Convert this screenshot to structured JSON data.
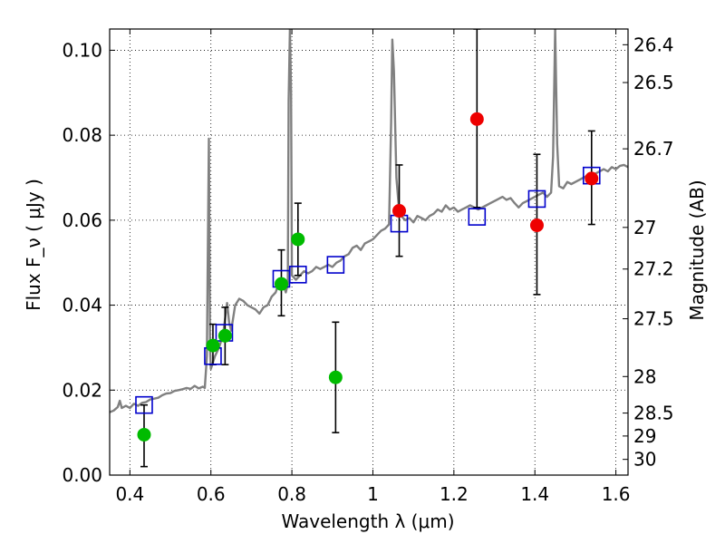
{
  "chart_data": {
    "type": "scatter",
    "title": "",
    "xlabel": "Wavelength  λ (μm)",
    "ylabel": "Flux  F_ν  ( μJy )",
    "ylabel_right": "Magnitude (AB)",
    "xlim": [
      0.35,
      1.63
    ],
    "ylim": [
      0.0,
      0.105
    ],
    "grid": true,
    "grid_style": "dotted",
    "xticks": [
      0.4,
      0.6,
      0.8,
      1.0,
      1.2,
      1.4,
      1.6
    ],
    "xtick_labels": [
      "0.4",
      "0.6",
      "0.8",
      "1",
      "1.2",
      "1.4",
      "1.6"
    ],
    "yticks": [
      0.0,
      0.02,
      0.04,
      0.06,
      0.08,
      0.1
    ],
    "ytick_labels": [
      "0.00",
      "0.02",
      "0.04",
      "0.06",
      "0.08",
      "0.10"
    ],
    "right_axis": {
      "label": "Magnitude (AB)",
      "ticks": [
        {
          "label": "26.4",
          "flux": 0.1013
        },
        {
          "label": "26.5",
          "flux": 0.0924
        },
        {
          "label": "26.7",
          "flux": 0.0768
        },
        {
          "label": "27",
          "flux": 0.0583
        },
        {
          "label": "27.2",
          "flux": 0.0485
        },
        {
          "label": "27.5",
          "flux": 0.0368
        },
        {
          "label": "28",
          "flux": 0.0232
        },
        {
          "label": "28.5",
          "flux": 0.0146
        },
        {
          "label": "29",
          "flux": 0.0092
        },
        {
          "label": "30",
          "flux": 0.0037
        }
      ]
    },
    "series": [
      {
        "kind": "line",
        "color": "#808080",
        "points": [
          [
            0.35,
            0.0148
          ],
          [
            0.36,
            0.0152
          ],
          [
            0.37,
            0.016
          ],
          [
            0.375,
            0.0175
          ],
          [
            0.38,
            0.0158
          ],
          [
            0.39,
            0.0163
          ],
          [
            0.4,
            0.0158
          ],
          [
            0.41,
            0.0168
          ],
          [
            0.42,
            0.0163
          ],
          [
            0.43,
            0.017
          ],
          [
            0.44,
            0.0172
          ],
          [
            0.45,
            0.0178
          ],
          [
            0.46,
            0.018
          ],
          [
            0.47,
            0.0182
          ],
          [
            0.48,
            0.0188
          ],
          [
            0.49,
            0.0192
          ],
          [
            0.5,
            0.0193
          ],
          [
            0.51,
            0.0198
          ],
          [
            0.52,
            0.02
          ],
          [
            0.53,
            0.0202
          ],
          [
            0.54,
            0.0205
          ],
          [
            0.55,
            0.0203
          ],
          [
            0.56,
            0.021
          ],
          [
            0.57,
            0.0204
          ],
          [
            0.58,
            0.0208
          ],
          [
            0.585,
            0.0205
          ],
          [
            0.59,
            0.028
          ],
          [
            0.592,
            0.047
          ],
          [
            0.595,
            0.0792
          ],
          [
            0.598,
            0.03
          ],
          [
            0.6,
            0.025
          ],
          [
            0.61,
            0.028
          ],
          [
            0.62,
            0.03
          ],
          [
            0.63,
            0.033
          ],
          [
            0.64,
            0.0405
          ],
          [
            0.645,
            0.036
          ],
          [
            0.65,
            0.034
          ],
          [
            0.66,
            0.04
          ],
          [
            0.67,
            0.0415
          ],
          [
            0.68,
            0.041
          ],
          [
            0.69,
            0.04
          ],
          [
            0.7,
            0.0395
          ],
          [
            0.71,
            0.039
          ],
          [
            0.72,
            0.038
          ],
          [
            0.73,
            0.0395
          ],
          [
            0.74,
            0.04
          ],
          [
            0.75,
            0.042
          ],
          [
            0.76,
            0.043
          ],
          [
            0.765,
            0.0445
          ],
          [
            0.77,
            0.044
          ],
          [
            0.78,
            0.0445
          ],
          [
            0.785,
            0.043
          ],
          [
            0.79,
            0.045
          ],
          [
            0.792,
            0.088
          ],
          [
            0.795,
            0.105
          ],
          [
            0.798,
            0.09
          ],
          [
            0.8,
            0.047
          ],
          [
            0.81,
            0.046
          ],
          [
            0.82,
            0.047
          ],
          [
            0.83,
            0.048
          ],
          [
            0.84,
            0.0475
          ],
          [
            0.85,
            0.048
          ],
          [
            0.86,
            0.049
          ],
          [
            0.87,
            0.0485
          ],
          [
            0.88,
            0.049
          ],
          [
            0.89,
            0.0495
          ],
          [
            0.9,
            0.049
          ],
          [
            0.91,
            0.05
          ],
          [
            0.92,
            0.0505
          ],
          [
            0.93,
            0.0515
          ],
          [
            0.94,
            0.052
          ],
          [
            0.95,
            0.0535
          ],
          [
            0.96,
            0.054
          ],
          [
            0.97,
            0.053
          ],
          [
            0.98,
            0.0545
          ],
          [
            0.99,
            0.055
          ],
          [
            1.0,
            0.0555
          ],
          [
            1.01,
            0.0565
          ],
          [
            1.02,
            0.0575
          ],
          [
            1.03,
            0.058
          ],
          [
            1.04,
            0.059
          ],
          [
            1.045,
            0.083
          ],
          [
            1.048,
            0.1025
          ],
          [
            1.052,
            0.095
          ],
          [
            1.058,
            0.07
          ],
          [
            1.065,
            0.062
          ],
          [
            1.07,
            0.061
          ],
          [
            1.08,
            0.06
          ],
          [
            1.09,
            0.0605
          ],
          [
            1.1,
            0.0595
          ],
          [
            1.11,
            0.061
          ],
          [
            1.12,
            0.0605
          ],
          [
            1.13,
            0.06
          ],
          [
            1.14,
            0.061
          ],
          [
            1.15,
            0.0615
          ],
          [
            1.16,
            0.0625
          ],
          [
            1.17,
            0.062
          ],
          [
            1.18,
            0.0635
          ],
          [
            1.19,
            0.0625
          ],
          [
            1.2,
            0.063
          ],
          [
            1.21,
            0.062
          ],
          [
            1.22,
            0.0625
          ],
          [
            1.23,
            0.063
          ],
          [
            1.24,
            0.0635
          ],
          [
            1.25,
            0.063
          ],
          [
            1.26,
            0.0625
          ],
          [
            1.27,
            0.063
          ],
          [
            1.28,
            0.0635
          ],
          [
            1.29,
            0.064
          ],
          [
            1.3,
            0.0645
          ],
          [
            1.31,
            0.065
          ],
          [
            1.32,
            0.0655
          ],
          [
            1.33,
            0.0648
          ],
          [
            1.34,
            0.0652
          ],
          [
            1.35,
            0.064
          ],
          [
            1.36,
            0.063
          ],
          [
            1.37,
            0.064
          ],
          [
            1.38,
            0.0645
          ],
          [
            1.39,
            0.065
          ],
          [
            1.4,
            0.0655
          ],
          [
            1.41,
            0.066
          ],
          [
            1.42,
            0.0665
          ],
          [
            1.43,
            0.0655
          ],
          [
            1.44,
            0.0665
          ],
          [
            1.445,
            0.075
          ],
          [
            1.45,
            0.105
          ],
          [
            1.455,
            0.078
          ],
          [
            1.46,
            0.068
          ],
          [
            1.47,
            0.0675
          ],
          [
            1.48,
            0.069
          ],
          [
            1.49,
            0.0685
          ],
          [
            1.5,
            0.069
          ],
          [
            1.51,
            0.0695
          ],
          [
            1.52,
            0.07
          ],
          [
            1.53,
            0.0705
          ],
          [
            1.54,
            0.07
          ],
          [
            1.55,
            0.071
          ],
          [
            1.56,
            0.0715
          ],
          [
            1.57,
            0.072
          ],
          [
            1.58,
            0.0715
          ],
          [
            1.59,
            0.0725
          ],
          [
            1.6,
            0.072
          ],
          [
            1.61,
            0.0728
          ],
          [
            1.62,
            0.073
          ],
          [
            1.63,
            0.0725
          ]
        ]
      },
      {
        "kind": "open-square",
        "color": "#0000cc",
        "points": [
          [
            0.435,
            0.0165
          ],
          [
            0.605,
            0.028
          ],
          [
            0.633,
            0.0335
          ],
          [
            0.774,
            0.0462
          ],
          [
            0.815,
            0.0472
          ],
          [
            0.908,
            0.0495
          ],
          [
            1.065,
            0.0592
          ],
          [
            1.257,
            0.0608
          ],
          [
            1.405,
            0.065
          ],
          [
            1.54,
            0.0705
          ]
        ]
      },
      {
        "kind": "filled-circle",
        "color": "#00bb00",
        "points": [
          {
            "x": 0.435,
            "y": 0.0095,
            "err_lo": 0.002,
            "err_hi": 0.0165
          },
          {
            "x": 0.605,
            "y": 0.0305,
            "err_lo": 0.026,
            "err_hi": 0.0355
          },
          {
            "x": 0.635,
            "y": 0.0328,
            "err_lo": 0.026,
            "err_hi": 0.0395
          },
          {
            "x": 0.774,
            "y": 0.045,
            "err_lo": 0.0375,
            "err_hi": 0.053
          },
          {
            "x": 0.815,
            "y": 0.0555,
            "err_lo": 0.047,
            "err_hi": 0.064
          },
          {
            "x": 0.908,
            "y": 0.023,
            "err_lo": 0.01,
            "err_hi": 0.036
          }
        ]
      },
      {
        "kind": "filled-circle",
        "color": "#ee0000",
        "points": [
          {
            "x": 1.065,
            "y": 0.0622,
            "err_lo": 0.0515,
            "err_hi": 0.073
          },
          {
            "x": 1.257,
            "y": 0.0838,
            "err_lo": 0.063,
            "err_hi": 0.105
          },
          {
            "x": 1.405,
            "y": 0.0588,
            "err_lo": 0.0425,
            "err_hi": 0.0755
          },
          {
            "x": 1.54,
            "y": 0.0698,
            "err_lo": 0.059,
            "err_hi": 0.081
          }
        ]
      }
    ]
  }
}
